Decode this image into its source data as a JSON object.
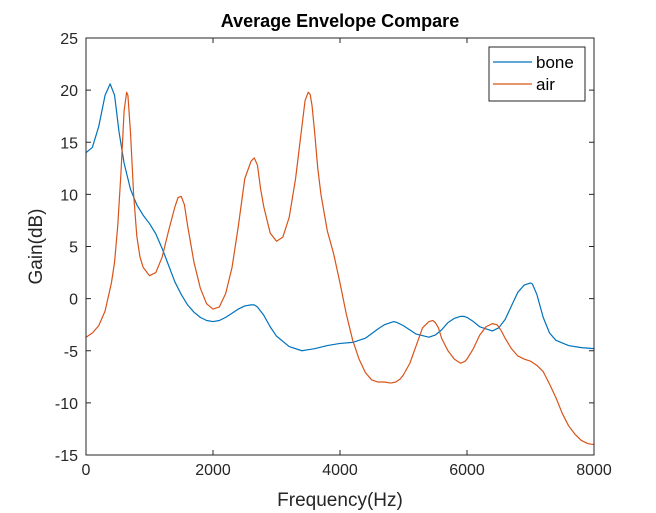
{
  "chart_data": {
    "type": "line",
    "title": "Average Envelope Compare",
    "xlabel": "Frequency(Hz)",
    "ylabel": "Gain(dB)",
    "xlim": [
      0,
      8000
    ],
    "ylim": [
      -15,
      25
    ],
    "xticks": [
      0,
      2000,
      4000,
      6000,
      8000
    ],
    "yticks": [
      -15,
      -10,
      -5,
      0,
      5,
      10,
      15,
      20,
      25
    ],
    "grid": false,
    "legend_position": "top-right",
    "series": [
      {
        "name": "bone",
        "color": "#0072BD",
        "x": [
          0,
          100,
          200,
          300,
          380,
          450,
          520,
          600,
          700,
          800,
          900,
          1000,
          1100,
          1200,
          1300,
          1400,
          1500,
          1600,
          1700,
          1800,
          1900,
          2000,
          2100,
          2200,
          2300,
          2400,
          2500,
          2600,
          2650,
          2700,
          2800,
          2900,
          3000,
          3200,
          3400,
          3500,
          3600,
          3800,
          4000,
          4200,
          4400,
          4600,
          4700,
          4800,
          4850,
          4900,
          5000,
          5200,
          5400,
          5500,
          5600,
          5700,
          5800,
          5900,
          5950,
          6000,
          6100,
          6200,
          6400,
          6500,
          6600,
          6700,
          6800,
          6900,
          7000,
          7030,
          7100,
          7200,
          7300,
          7400,
          7600,
          7800,
          8000
        ],
        "y": [
          14,
          14.5,
          16.5,
          19.5,
          20.6,
          19.5,
          16,
          13,
          10.5,
          9,
          8,
          7.2,
          6.2,
          4.8,
          3.2,
          1.6,
          0.4,
          -0.6,
          -1.3,
          -1.8,
          -2.1,
          -2.2,
          -2.1,
          -1.8,
          -1.4,
          -1,
          -0.7,
          -0.6,
          -0.6,
          -0.8,
          -1.6,
          -2.7,
          -3.6,
          -4.6,
          -5,
          -4.9,
          -4.8,
          -4.5,
          -4.3,
          -4.2,
          -3.8,
          -2.9,
          -2.5,
          -2.3,
          -2.2,
          -2.3,
          -2.6,
          -3.4,
          -3.7,
          -3.5,
          -3,
          -2.3,
          -1.9,
          -1.7,
          -1.7,
          -1.8,
          -2.2,
          -2.7,
          -3.1,
          -2.8,
          -2,
          -0.7,
          0.6,
          1.3,
          1.5,
          1.4,
          0.4,
          -1.8,
          -3.3,
          -4,
          -4.5,
          -4.7,
          -4.8
        ]
      },
      {
        "name": "air",
        "color": "#D95319",
        "x": [
          0,
          100,
          200,
          300,
          400,
          450,
          500,
          550,
          600,
          640,
          660,
          700,
          750,
          800,
          850,
          900,
          1000,
          1100,
          1200,
          1300,
          1400,
          1450,
          1500,
          1550,
          1600,
          1700,
          1800,
          1900,
          2000,
          2100,
          2200,
          2300,
          2400,
          2500,
          2600,
          2650,
          2700,
          2750,
          2800,
          2900,
          3000,
          3100,
          3200,
          3300,
          3400,
          3450,
          3500,
          3530,
          3560,
          3600,
          3650,
          3700,
          3800,
          3900,
          4000,
          4100,
          4200,
          4300,
          4400,
          4500,
          4600,
          4700,
          4800,
          4880,
          4950,
          5000,
          5100,
          5200,
          5300,
          5400,
          5460,
          5500,
          5550,
          5600,
          5700,
          5800,
          5900,
          5970,
          6000,
          6100,
          6200,
          6300,
          6400,
          6470,
          6500,
          6550,
          6600,
          6700,
          6800,
          6900,
          7000,
          7100,
          7200,
          7300,
          7400,
          7500,
          7600,
          7700,
          7800,
          7900,
          8000
        ],
        "y": [
          -3.7,
          -3.3,
          -2.6,
          -1.2,
          1.5,
          3.5,
          7,
          12,
          18,
          19.8,
          19.5,
          16,
          10,
          6,
          4,
          3,
          2.2,
          2.5,
          4,
          6.5,
          8.8,
          9.7,
          9.8,
          9,
          7,
          3.5,
          1,
          -0.5,
          -1,
          -0.8,
          0.5,
          3,
          7,
          11.5,
          13.2,
          13.5,
          12.8,
          10.5,
          8.8,
          6.3,
          5.5,
          5.9,
          7.8,
          11.5,
          16.5,
          19,
          19.8,
          19.6,
          18.5,
          16,
          12.5,
          10,
          6.5,
          4.3,
          1.5,
          -1.5,
          -4,
          -5.8,
          -7.1,
          -7.8,
          -8,
          -8,
          -8.1,
          -8,
          -7.7,
          -7.3,
          -6.2,
          -4.5,
          -2.8,
          -2.2,
          -2.1,
          -2.3,
          -2.8,
          -3.8,
          -5,
          -5.8,
          -6.2,
          -6,
          -5.8,
          -4.8,
          -3.5,
          -2.7,
          -2.4,
          -2.5,
          -2.7,
          -3.2,
          -3.8,
          -4.8,
          -5.5,
          -5.8,
          -6,
          -6.4,
          -7,
          -8.2,
          -9.5,
          -11,
          -12.2,
          -13,
          -13.6,
          -13.9,
          -14
        ]
      }
    ]
  }
}
